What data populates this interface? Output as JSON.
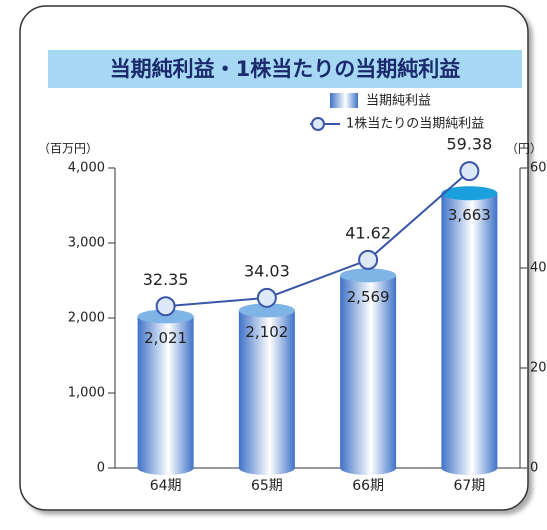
{
  "chart_data": {
    "type": "bar_line",
    "title": "当期純利益・1株当たりの当期純利益",
    "y_unit": "（百万円）",
    "y2_unit": "（円）",
    "categories": [
      "64期",
      "65期",
      "66期",
      "67期"
    ],
    "series": [
      {
        "name": "当期純利益",
        "type": "bar",
        "color": "#3f72c8",
        "values": [
          2021,
          2102,
          2569,
          3663
        ],
        "value_labels": [
          "2,021",
          "2,102",
          "2,569",
          "3,663"
        ]
      },
      {
        "name": "1株当たりの当期純利益",
        "type": "line",
        "axis": "y2",
        "color": "#3a56a8",
        "values": [
          32.35,
          34.03,
          41.62,
          59.38
        ]
      }
    ],
    "ylim": [
      0,
      4000
    ],
    "yticks": [
      0,
      {
        "value": 1000,
        "label": "1,000"
      },
      {
        "value": 2000,
        "label": "2,000"
      },
      {
        "value": 3000,
        "label": "3,000"
      },
      {
        "value": 4000,
        "label": "4,000"
      }
    ],
    "y2lim": [
      0,
      60
    ],
    "y2ticks": [
      0,
      20,
      40,
      60
    ]
  }
}
